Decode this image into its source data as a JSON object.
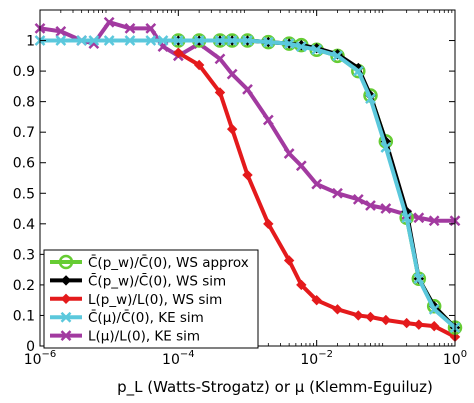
{
  "chart_data": {
    "type": "line",
    "xlabel": "p_L (Watts-Strogatz) or μ (Klemm-Eguiluz)",
    "xscale": "log",
    "xlim": [
      1e-06,
      1
    ],
    "ylim": [
      0,
      1.1
    ],
    "grid": false,
    "legend_position": "bottom-left",
    "x_ticks": [
      {
        "value": 1e-06,
        "base": "10",
        "exp": "−6"
      },
      {
        "value": 0.0001,
        "base": "10",
        "exp": "−4"
      },
      {
        "value": 0.01,
        "base": "10",
        "exp": "−2"
      },
      {
        "value": 1,
        "base": "10",
        "exp": "0"
      }
    ],
    "y_ticks": [
      0,
      0.1,
      0.2,
      0.3,
      0.4,
      0.5,
      0.6,
      0.7,
      0.8,
      0.9,
      1
    ],
    "y_tick_labels": [
      "0",
      "0.1",
      "0.2",
      "0.3",
      "0.4",
      "0.5",
      "0.6",
      "0.7",
      "0.8",
      "0.9",
      "1"
    ],
    "series": [
      {
        "name": "C̄(p_w)/C̄(0), WS approx",
        "color": "#66cc33",
        "marker": "circle",
        "x": [
          0.0001,
          0.0002,
          0.0004,
          0.0006,
          0.001,
          0.002,
          0.004,
          0.006,
          0.01,
          0.02,
          0.04,
          0.06,
          0.1,
          0.2,
          0.3,
          0.5,
          1
        ],
        "y": [
          1.0,
          1.0,
          1.0,
          1.0,
          1.0,
          0.995,
          0.99,
          0.985,
          0.97,
          0.95,
          0.9,
          0.82,
          0.67,
          0.42,
          0.22,
          0.13,
          0.06
        ]
      },
      {
        "name": "C̄(p_w)/C̄(0), WS sim",
        "color": "#000000",
        "marker": "diamond",
        "x": [
          0.0001,
          0.0002,
          0.0004,
          0.0006,
          0.001,
          0.002,
          0.004,
          0.006,
          0.01,
          0.02,
          0.04,
          0.06,
          0.1,
          0.2,
          0.3,
          0.5,
          1
        ],
        "y": [
          1.0,
          1.0,
          1.0,
          1.0,
          1.0,
          0.995,
          0.99,
          0.985,
          0.975,
          0.955,
          0.91,
          0.82,
          0.67,
          0.44,
          0.22,
          0.13,
          0.06
        ]
      },
      {
        "name": "L(p_w)/L(0), WS sim",
        "color": "#e41a1c",
        "marker": "diamond",
        "x": [
          0.0001,
          0.0002,
          0.0004,
          0.0006,
          0.001,
          0.002,
          0.004,
          0.006,
          0.01,
          0.02,
          0.04,
          0.06,
          0.1,
          0.2,
          0.3,
          0.5,
          1
        ],
        "y": [
          0.96,
          0.92,
          0.83,
          0.71,
          0.56,
          0.4,
          0.28,
          0.2,
          0.15,
          0.12,
          0.1,
          0.095,
          0.085,
          0.075,
          0.07,
          0.065,
          0.03
        ]
      },
      {
        "name": "C̄(μ)/C̄(0), KE sim",
        "color": "#5bc8dc",
        "marker": "x",
        "x": [
          1e-06,
          2e-06,
          4e-06,
          6e-06,
          1e-05,
          2e-05,
          4e-05,
          6e-05,
          0.0001,
          0.0002,
          0.0004,
          0.0006,
          0.001,
          0.002,
          0.004,
          0.006,
          0.01,
          0.02,
          0.04,
          0.06,
          0.1,
          0.2,
          0.3,
          0.5,
          1
        ],
        "y": [
          1.0,
          1.0,
          1.0,
          1.0,
          1.0,
          1.0,
          1.0,
          1.0,
          1.0,
          1.0,
          1.0,
          1.0,
          1.0,
          0.995,
          0.99,
          0.98,
          0.97,
          0.95,
          0.9,
          0.81,
          0.65,
          0.42,
          0.22,
          0.12,
          0.06
        ]
      },
      {
        "name": "L(μ)/L(0), KE sim",
        "color": "#a23aa0",
        "marker": "x",
        "x": [
          1e-06,
          2e-06,
          4e-06,
          6e-06,
          1e-05,
          2e-05,
          4e-05,
          6e-05,
          0.0001,
          0.0002,
          0.0004,
          0.0006,
          0.001,
          0.002,
          0.004,
          0.006,
          0.01,
          0.02,
          0.04,
          0.06,
          0.1,
          0.2,
          0.3,
          0.5,
          1
        ],
        "y": [
          1.04,
          1.03,
          1.0,
          0.99,
          1.06,
          1.04,
          1.04,
          0.98,
          0.95,
          0.99,
          0.94,
          0.89,
          0.84,
          0.74,
          0.63,
          0.59,
          0.53,
          0.5,
          0.48,
          0.46,
          0.45,
          0.43,
          0.42,
          0.41,
          0.41
        ]
      }
    ]
  }
}
